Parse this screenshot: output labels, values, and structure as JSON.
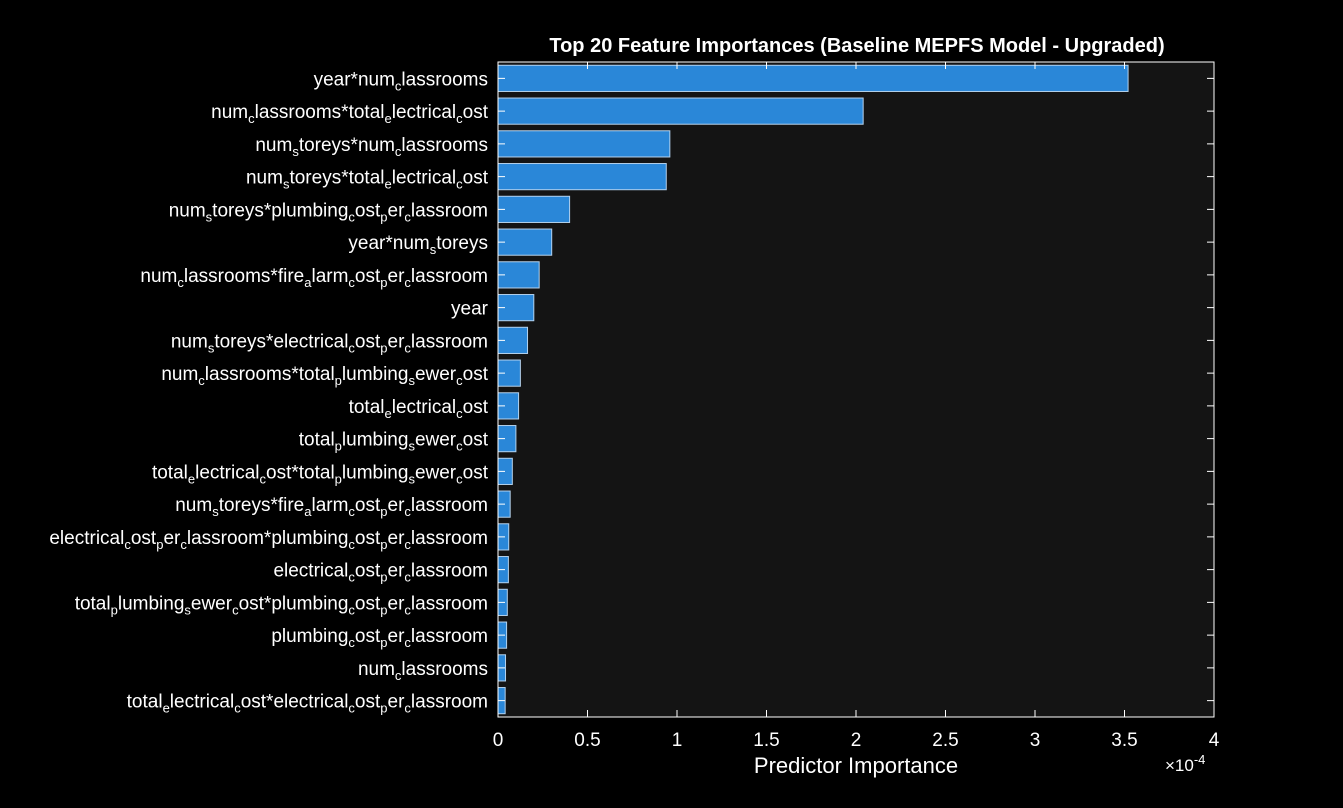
{
  "chart_data": {
    "type": "bar",
    "orientation": "horizontal",
    "title": "Top 20 Feature Importances (Baseline MEPFS Model - Upgraded)",
    "xlabel": "Predictor Importance",
    "ylabel": "",
    "x_exponent_label": "×10",
    "x_exponent_power": "-4",
    "x_scale": 0.0001,
    "xlim": [
      0,
      4
    ],
    "xticks": [
      "0",
      "0.5",
      "1",
      "1.5",
      "2",
      "2.5",
      "3",
      "3.5",
      "4"
    ],
    "grid": false,
    "categories": [
      "year*num_classrooms",
      "num_classrooms*total_electrical_cost",
      "num_storeys*num_classrooms",
      "num_storeys*total_electrical_cost",
      "num_storeys*plumbing_cost_per_classroom",
      "year*num_storeys",
      "num_classrooms*fire_alarm_cost_per_classroom",
      "year",
      "num_storeys*electrical_cost_per_classroom",
      "num_classrooms*total_plumbing_sewer_cost",
      "total_electrical_cost",
      "total_plumbing_sewer_cost",
      "total_electrical_cost*total_plumbing_sewer_cost",
      "num_storeys*fire_alarm_cost_per_classroom",
      "electrical_cost_per_classroom*plumbing_cost_per_classroom",
      "electrical_cost_per_classroom",
      "total_plumbing_sewer_cost*plumbing_cost_per_classroom",
      "plumbing_cost_per_classroom",
      "num_classrooms",
      "total_electrical_cost*electrical_cost_per_classroom"
    ],
    "values": [
      3.52,
      2.04,
      0.96,
      0.94,
      0.4,
      0.3,
      0.23,
      0.2,
      0.165,
      0.125,
      0.115,
      0.1,
      0.08,
      0.068,
      0.06,
      0.058,
      0.052,
      0.048,
      0.042,
      0.04
    ]
  },
  "colors": {
    "background": "#000000",
    "plot_background": "#141414",
    "bar_fill": "#2a87d8",
    "bar_edge": "#b4d2ee",
    "axis": "#ffffff"
  }
}
